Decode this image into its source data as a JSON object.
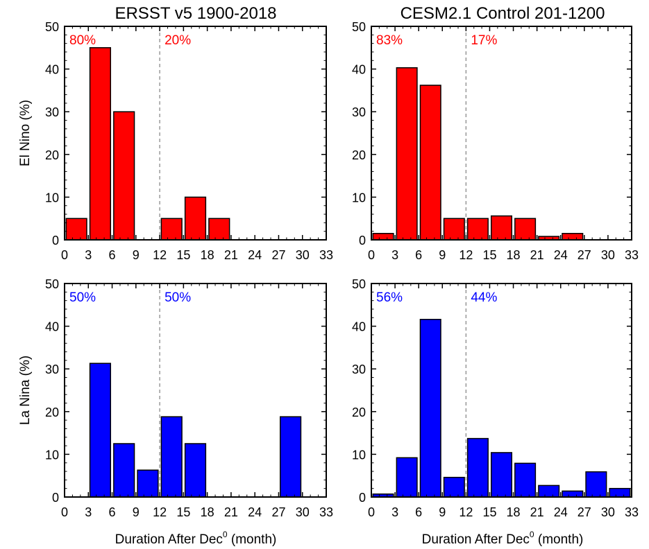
{
  "figure": {
    "column_titles": [
      "ERSST v5 1900-2018",
      "CESM2.1 Control 201-1200"
    ],
    "row_ylabels": [
      "El Nino (%)",
      "La Nina (%)"
    ],
    "xlabel": "Duration After Dec",
    "xlabel_superscript": "0",
    "xlabel_unit": " (month)"
  },
  "chart_data": [
    {
      "type": "bar",
      "title": "ERSST v5 1900-2018",
      "ylabel": "El Nino (%)",
      "xlabel": "Duration After Dec0 (month)",
      "xlim": [
        0,
        33
      ],
      "ylim": [
        0,
        50
      ],
      "xticks": [
        0,
        3,
        6,
        9,
        12,
        15,
        18,
        21,
        24,
        27,
        30,
        33
      ],
      "yticks": [
        0,
        10,
        20,
        30,
        40,
        50
      ],
      "bin_width": 3,
      "bin_starts": [
        0,
        3,
        6,
        9,
        12,
        15,
        18,
        21,
        24,
        27,
        30
      ],
      "values": [
        5,
        45,
        30,
        0,
        5,
        10,
        5,
        0,
        0,
        0,
        0
      ],
      "color": "#ff0000",
      "divider_x": 12,
      "annotations": [
        "80%",
        "20%"
      ],
      "grid": false
    },
    {
      "type": "bar",
      "title": "CESM2.1 Control 201-1200",
      "ylabel": "",
      "xlabel": "Duration After Dec0 (month)",
      "xlim": [
        0,
        33
      ],
      "ylim": [
        0,
        50
      ],
      "xticks": [
        0,
        3,
        6,
        9,
        12,
        15,
        18,
        21,
        24,
        27,
        30,
        33
      ],
      "yticks": [
        0,
        10,
        20,
        30,
        40,
        50
      ],
      "bin_width": 3,
      "bin_starts": [
        0,
        3,
        6,
        9,
        12,
        15,
        18,
        21,
        24,
        27,
        30
      ],
      "values": [
        1.5,
        40.3,
        36.2,
        5,
        5,
        5.6,
        5,
        0.8,
        1.5,
        0,
        0
      ],
      "color": "#ff0000",
      "divider_x": 12,
      "annotations": [
        "83%",
        "17%"
      ],
      "grid": false
    },
    {
      "type": "bar",
      "title": "",
      "ylabel": "La Nina (%)",
      "xlabel": "Duration After Dec0 (month)",
      "xlim": [
        0,
        33
      ],
      "ylim": [
        0,
        50
      ],
      "xticks": [
        0,
        3,
        6,
        9,
        12,
        15,
        18,
        21,
        24,
        27,
        30,
        33
      ],
      "yticks": [
        0,
        10,
        20,
        30,
        40,
        50
      ],
      "bin_width": 3,
      "bin_starts": [
        0,
        3,
        6,
        9,
        12,
        15,
        18,
        21,
        24,
        27,
        30
      ],
      "values": [
        0,
        31.3,
        12.5,
        6.3,
        18.8,
        12.5,
        0,
        0,
        0,
        18.8,
        0
      ],
      "color": "#0000ff",
      "divider_x": 12,
      "annotations": [
        "50%",
        "50%"
      ],
      "grid": false
    },
    {
      "type": "bar",
      "title": "",
      "ylabel": "",
      "xlabel": "Duration After Dec0 (month)",
      "xlim": [
        0,
        33
      ],
      "ylim": [
        0,
        50
      ],
      "xticks": [
        0,
        3,
        6,
        9,
        12,
        15,
        18,
        21,
        24,
        27,
        30,
        33
      ],
      "yticks": [
        0,
        10,
        20,
        30,
        40,
        50
      ],
      "bin_width": 3,
      "bin_starts": [
        0,
        3,
        6,
        9,
        12,
        15,
        18,
        21,
        24,
        27,
        30
      ],
      "values": [
        0.7,
        9.2,
        41.6,
        4.6,
        13.7,
        10.4,
        7.9,
        2.7,
        1.4,
        5.9,
        2
      ],
      "color": "#0000ff",
      "divider_x": 12,
      "annotations": [
        "56%",
        "44%"
      ],
      "grid": false
    }
  ]
}
